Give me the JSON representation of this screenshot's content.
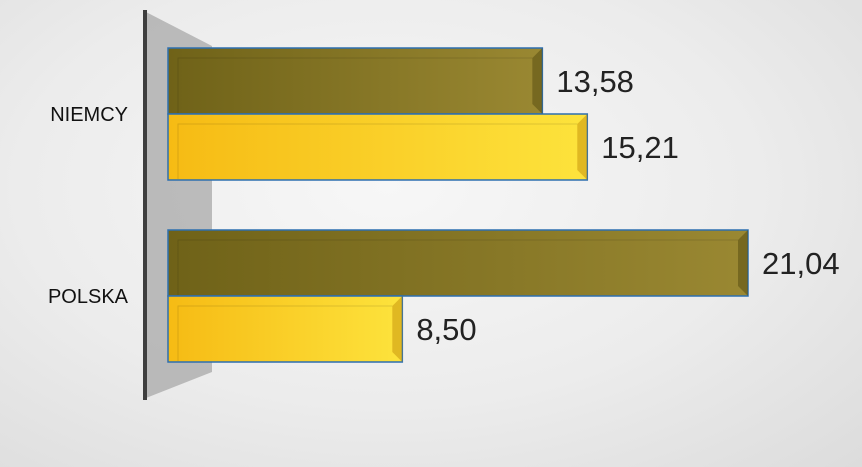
{
  "chart_data": {
    "type": "bar",
    "orientation": "horizontal",
    "title": "",
    "xlabel": "",
    "ylabel": "",
    "categories": [
      "NIEMCY",
      "POLSKA"
    ],
    "series": [
      {
        "values": [
          13.58,
          21.04
        ],
        "labels": [
          "13,58",
          "21,04"
        ],
        "color": "#8a7a22"
      },
      {
        "values": [
          15.21,
          8.5
        ],
        "labels": [
          "15,21",
          "8,50"
        ],
        "color": "#f7c51e"
      }
    ],
    "xlim": [
      0,
      21.04
    ],
    "grid": false,
    "legend": "none"
  }
}
